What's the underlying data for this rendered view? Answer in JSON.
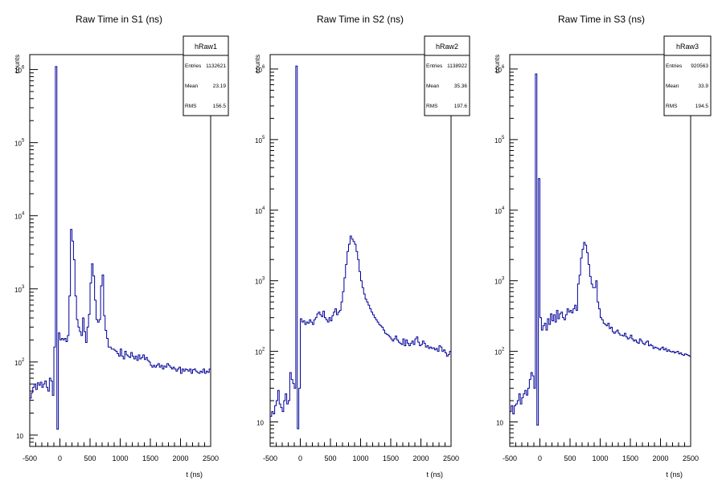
{
  "chart_data": [
    {
      "type": "histogram",
      "title": "Raw Time in S1 (ns)",
      "xlabel": "t  (ns)",
      "ylabel": "counts",
      "yscale": "log",
      "xlim": [
        -500,
        2500
      ],
      "ylim": [
        7,
        1600000
      ],
      "xticks": [
        -500,
        0,
        500,
        1000,
        1500,
        2000,
        2500
      ],
      "yticks": [
        {
          "v": 10,
          "m": "10",
          "e": ""
        },
        {
          "v": 100,
          "m": "10",
          "e": "2"
        },
        {
          "v": 1000,
          "m": "10",
          "e": "3"
        },
        {
          "v": 10000,
          "m": "10",
          "e": "4"
        },
        {
          "v": 100000,
          "m": "10",
          "e": "5"
        },
        {
          "v": 1000000,
          "m": "10",
          "e": "6"
        }
      ],
      "legend": {
        "name": "hRaw1",
        "entries_label": "Entries",
        "entries": "1132621",
        "mean_label": "Mean",
        "mean": "23.19",
        "rms_label": "RMS",
        "rms": "156.5"
      },
      "series": [
        {
          "color": "#000099",
          "x_start": -500,
          "bin_width": 25,
          "values": [
            32,
            38,
            45,
            50,
            42,
            52,
            48,
            53,
            45,
            50,
            55,
            45,
            40,
            60,
            55,
            35,
            160,
            1100000,
            12,
            250,
            200,
            210,
            200,
            210,
            190,
            230,
            800,
            6500,
            4500,
            2500,
            800,
            380,
            300,
            260,
            230,
            400,
            260,
            185,
            300,
            450,
            1200,
            2200,
            1500,
            700,
            380,
            350,
            380,
            1100,
            1550,
            430,
            270,
            210,
            160,
            160,
            150,
            150,
            145,
            140,
            130,
            120,
            150,
            120,
            110,
            140,
            125,
            120,
            115,
            135,
            120,
            110,
            120,
            105,
            125,
            110,
            115,
            125,
            108,
            115,
            105,
            100,
            90,
            85,
            90,
            85,
            90,
            95,
            85,
            90,
            80,
            88,
            85,
            95,
            90,
            85,
            80,
            85,
            80,
            75,
            80,
            85,
            70,
            80,
            75,
            80,
            78,
            75,
            80,
            70,
            78,
            80,
            75,
            72,
            70,
            75,
            72,
            80,
            70,
            75,
            72,
            80
          ]
        }
      ]
    },
    {
      "type": "histogram",
      "title": "Raw Time in S2 (ns)",
      "xlabel": "t  (ns)",
      "ylabel": "counts",
      "yscale": "log",
      "xlim": [
        -500,
        2500
      ],
      "ylim": [
        4.5,
        1600000
      ],
      "xticks": [
        -500,
        0,
        500,
        1000,
        1500,
        2000,
        2500
      ],
      "yticks": [
        {
          "v": 10,
          "m": "10",
          "e": ""
        },
        {
          "v": 100,
          "m": "10",
          "e": "2"
        },
        {
          "v": 1000,
          "m": "10",
          "e": "3"
        },
        {
          "v": 10000,
          "m": "10",
          "e": "4"
        },
        {
          "v": 100000,
          "m": "10",
          "e": "5"
        },
        {
          "v": 1000000,
          "m": "10",
          "e": "6"
        }
      ],
      "legend": {
        "name": "hRaw2",
        "entries_label": "Entries",
        "entries": "1138922",
        "mean_label": "Mean",
        "mean": "35.36",
        "rms_label": "RMS",
        "rms": "197.6"
      },
      "series": [
        {
          "color": "#000099",
          "x_start": -500,
          "bin_width": 25,
          "values": [
            12,
            14,
            13,
            17,
            20,
            28,
            18,
            16,
            14,
            20,
            25,
            18,
            20,
            50,
            40,
            35,
            30,
            1100000,
            8,
            30,
            290,
            260,
            270,
            240,
            260,
            250,
            280,
            260,
            240,
            280,
            300,
            340,
            360,
            330,
            310,
            370,
            300,
            280,
            260,
            300,
            270,
            320,
            360,
            400,
            330,
            360,
            380,
            500,
            700,
            1100,
            1700,
            2600,
            3300,
            4300,
            3900,
            3600,
            3300,
            2600,
            2000,
            1350,
            1000,
            800,
            650,
            550,
            500,
            450,
            400,
            360,
            330,
            300,
            280,
            260,
            240,
            230,
            220,
            200,
            180,
            175,
            170,
            160,
            150,
            140,
            150,
            165,
            145,
            135,
            130,
            125,
            150,
            120,
            145,
            130,
            120,
            130,
            140,
            125,
            150,
            160,
            135,
            120,
            125,
            140,
            130,
            115,
            120,
            110,
            115,
            110,
            112,
            105,
            110,
            100,
            120,
            115,
            100,
            105,
            95,
            85,
            90,
            100
          ]
        }
      ]
    },
    {
      "type": "histogram",
      "title": "Raw Time in S3 (ns)",
      "xlabel": "t  (ns)",
      "ylabel": "counts",
      "yscale": "log",
      "xlim": [
        -500,
        2500
      ],
      "ylim": [
        4.5,
        1600000
      ],
      "xticks": [
        -500,
        0,
        500,
        1000,
        1500,
        2000,
        2500
      ],
      "yticks": [
        {
          "v": 10,
          "m": "10",
          "e": ""
        },
        {
          "v": 100,
          "m": "10",
          "e": "2"
        },
        {
          "v": 1000,
          "m": "10",
          "e": "3"
        },
        {
          "v": 10000,
          "m": "10",
          "e": "4"
        },
        {
          "v": 100000,
          "m": "10",
          "e": "5"
        },
        {
          "v": 1000000,
          "m": "10",
          "e": "6"
        }
      ],
      "legend": {
        "name": "hRaw3",
        "entries_label": "Entries",
        "entries": "920563",
        "mean_label": "Mean",
        "mean": "33.9",
        "rms_label": "RMS",
        "rms": "194.5"
      },
      "series": [
        {
          "color": "#000099",
          "x_start": -500,
          "bin_width": 25,
          "values": [
            14,
            17,
            13,
            17,
            18,
            20,
            25,
            18,
            22,
            25,
            28,
            24,
            30,
            40,
            50,
            45,
            30,
            850000,
            9,
            28000,
            300,
            200,
            230,
            250,
            200,
            290,
            240,
            340,
            270,
            330,
            260,
            380,
            290,
            340,
            360,
            300,
            280,
            330,
            400,
            360,
            380,
            350,
            400,
            450,
            380,
            900,
            1200,
            2100,
            2800,
            3500,
            3200,
            2500,
            1700,
            1150,
            900,
            800,
            800,
            1000,
            500,
            400,
            300,
            280,
            250,
            240,
            230,
            250,
            210,
            220,
            190,
            180,
            190,
            200,
            180,
            170,
            170,
            165,
            180,
            160,
            150,
            155,
            170,
            150,
            140,
            145,
            135,
            130,
            150,
            140,
            130,
            125,
            135,
            140,
            120,
            125,
            120,
            110,
            115,
            112,
            110,
            105,
            110,
            115,
            105,
            110,
            100,
            105,
            100,
            98,
            100,
            95,
            98,
            100,
            92,
            95,
            90,
            88,
            92,
            90,
            88,
            85
          ]
        }
      ]
    }
  ]
}
